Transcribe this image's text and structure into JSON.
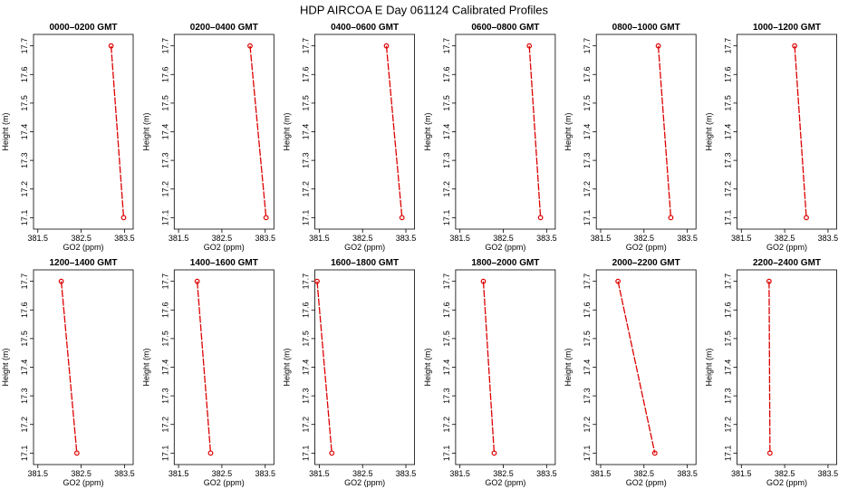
{
  "title": "HDP AIRCOA E  Day 061124  Calibrated Profiles",
  "chart_data": [
    {
      "type": "line",
      "title": "0000–0200 GMT",
      "xlabel": "GO2 (ppm)",
      "ylabel": "Height (m)",
      "x": [
        383.19,
        383.48
      ],
      "values": [
        17.7,
        17.1
      ],
      "color": "#dd0000",
      "xlim": [
        381.4,
        383.7
      ],
      "ylim": [
        17.06,
        17.74
      ],
      "xticks": [
        381.5,
        382.5,
        383.5
      ],
      "yticks": [
        17.1,
        17.2,
        17.3,
        17.4,
        17.5,
        17.6,
        17.7
      ]
    },
    {
      "type": "line",
      "title": "0200–0400 GMT",
      "xlabel": "GO2 (ppm)",
      "ylabel": "Height (m)",
      "x": [
        383.15,
        383.52
      ],
      "values": [
        17.7,
        17.1
      ],
      "color": "#dd0000",
      "xlim": [
        381.4,
        383.7
      ],
      "ylim": [
        17.06,
        17.74
      ],
      "xticks": [
        381.5,
        382.5,
        383.5
      ],
      "yticks": [
        17.1,
        17.2,
        17.3,
        17.4,
        17.5,
        17.6,
        17.7
      ]
    },
    {
      "type": "line",
      "title": "0400–0600 GMT",
      "xlabel": "GO2 (ppm)",
      "ylabel": "Height (m)",
      "x": [
        383.05,
        383.41
      ],
      "values": [
        17.7,
        17.1
      ],
      "color": "#dd0000",
      "xlim": [
        381.4,
        383.7
      ],
      "ylim": [
        17.06,
        17.74
      ],
      "xticks": [
        381.5,
        382.5,
        383.5
      ],
      "yticks": [
        17.1,
        17.2,
        17.3,
        17.4,
        17.5,
        17.6,
        17.7
      ]
    },
    {
      "type": "line",
      "title": "0600–0800 GMT",
      "xlabel": "GO2 (ppm)",
      "ylabel": "Height (m)",
      "x": [
        383.1,
        383.36
      ],
      "values": [
        17.7,
        17.1
      ],
      "color": "#dd0000",
      "xlim": [
        381.4,
        383.7
      ],
      "ylim": [
        17.06,
        17.74
      ],
      "xticks": [
        381.5,
        382.5,
        383.5
      ],
      "yticks": [
        17.1,
        17.2,
        17.3,
        17.4,
        17.5,
        17.6,
        17.7
      ]
    },
    {
      "type": "line",
      "title": "0800–1000 GMT",
      "xlabel": "GO2 (ppm)",
      "ylabel": "Height (m)",
      "x": [
        382.83,
        383.12
      ],
      "values": [
        17.7,
        17.1
      ],
      "color": "#dd0000",
      "xlim": [
        381.4,
        383.7
      ],
      "ylim": [
        17.06,
        17.74
      ],
      "xticks": [
        381.5,
        382.5,
        383.5
      ],
      "yticks": [
        17.1,
        17.2,
        17.3,
        17.4,
        17.5,
        17.6,
        17.7
      ]
    },
    {
      "type": "line",
      "title": "1000–1200 GMT",
      "xlabel": "GO2 (ppm)",
      "ylabel": "Height (m)",
      "x": [
        382.73,
        383.0
      ],
      "values": [
        17.7,
        17.1
      ],
      "color": "#dd0000",
      "xlim": [
        381.4,
        383.7
      ],
      "ylim": [
        17.06,
        17.74
      ],
      "xticks": [
        381.5,
        382.5,
        383.5
      ],
      "yticks": [
        17.1,
        17.2,
        17.3,
        17.4,
        17.5,
        17.6,
        17.7
      ]
    },
    {
      "type": "line",
      "title": "1200–1400 GMT",
      "xlabel": "GO2 (ppm)",
      "ylabel": "Height (m)",
      "x": [
        382.04,
        382.4
      ],
      "values": [
        17.7,
        17.1
      ],
      "color": "#dd0000",
      "xlim": [
        381.4,
        383.7
      ],
      "ylim": [
        17.06,
        17.74
      ],
      "xticks": [
        381.5,
        382.5,
        383.5
      ],
      "yticks": [
        17.1,
        17.2,
        17.3,
        17.4,
        17.5,
        17.6,
        17.7
      ]
    },
    {
      "type": "line",
      "title": "1400–1600 GMT",
      "xlabel": "GO2 (ppm)",
      "ylabel": "Height (m)",
      "x": [
        381.93,
        382.24
      ],
      "values": [
        17.7,
        17.1
      ],
      "color": "#dd0000",
      "xlim": [
        381.4,
        383.7
      ],
      "ylim": [
        17.06,
        17.74
      ],
      "xticks": [
        381.5,
        382.5,
        383.5
      ],
      "yticks": [
        17.1,
        17.2,
        17.3,
        17.4,
        17.5,
        17.6,
        17.7
      ]
    },
    {
      "type": "line",
      "title": "1600–1800 GMT",
      "xlabel": "GO2 (ppm)",
      "ylabel": "Height (m)",
      "x": [
        381.45,
        381.79
      ],
      "values": [
        17.7,
        17.1
      ],
      "color": "#dd0000",
      "xlim": [
        381.4,
        383.7
      ],
      "ylim": [
        17.06,
        17.74
      ],
      "xticks": [
        381.5,
        382.5,
        383.5
      ],
      "yticks": [
        17.1,
        17.2,
        17.3,
        17.4,
        17.5,
        17.6,
        17.7
      ]
    },
    {
      "type": "line",
      "title": "1800–2000 GMT",
      "xlabel": "GO2 (ppm)",
      "ylabel": "Height (m)",
      "x": [
        382.04,
        382.29
      ],
      "values": [
        17.7,
        17.1
      ],
      "color": "#dd0000",
      "xlim": [
        381.4,
        383.7
      ],
      "ylim": [
        17.06,
        17.74
      ],
      "xticks": [
        381.5,
        382.5,
        383.5
      ],
      "yticks": [
        17.1,
        17.2,
        17.3,
        17.4,
        17.5,
        17.6,
        17.7
      ]
    },
    {
      "type": "line",
      "title": "2000–2200 GMT",
      "xlabel": "GO2 (ppm)",
      "ylabel": "Height (m)",
      "x": [
        381.9,
        382.75
      ],
      "values": [
        17.7,
        17.1
      ],
      "color": "#dd0000",
      "xlim": [
        381.4,
        383.7
      ],
      "ylim": [
        17.06,
        17.74
      ],
      "xticks": [
        381.5,
        382.5,
        383.5
      ],
      "yticks": [
        17.1,
        17.2,
        17.3,
        17.4,
        17.5,
        17.6,
        17.7
      ]
    },
    {
      "type": "line",
      "title": "2200–2400 GMT",
      "xlabel": "GO2 (ppm)",
      "ylabel": "Height (m)",
      "x": [
        382.14,
        382.16
      ],
      "values": [
        17.7,
        17.1
      ],
      "color": "#dd0000",
      "xlim": [
        381.4,
        383.7
      ],
      "ylim": [
        17.06,
        17.74
      ],
      "xticks": [
        381.5,
        382.5,
        383.5
      ],
      "yticks": [
        17.1,
        17.2,
        17.3,
        17.4,
        17.5,
        17.6,
        17.7
      ]
    }
  ]
}
